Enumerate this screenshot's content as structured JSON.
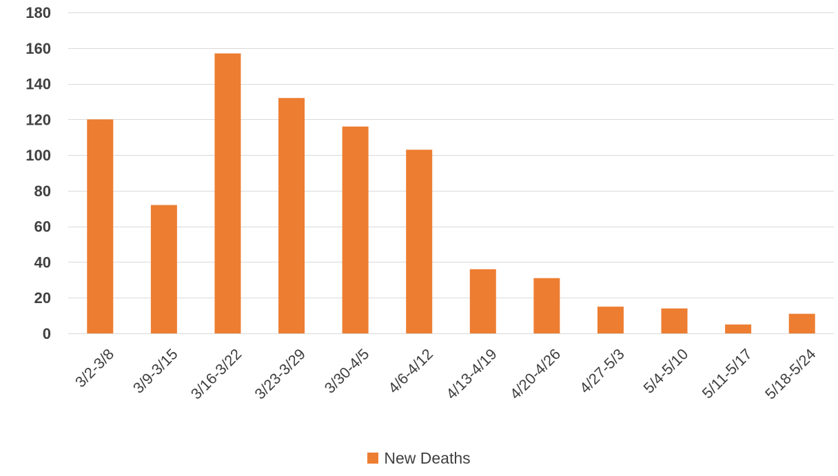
{
  "chart_data": {
    "type": "bar",
    "title": "",
    "xlabel": "",
    "ylabel": "",
    "categories": [
      "3/2-3/8",
      "3/9-3/15",
      "3/16-3/22",
      "3/23-3/29",
      "3/30-4/5",
      "4/6-4/12",
      "4/13-4/19",
      "4/20-4/26",
      "4/27-5/3",
      "5/4-5/10",
      "5/11-5/17",
      "5/18-5/24"
    ],
    "series": [
      {
        "name": "New Deaths",
        "color": "#ED7D31",
        "values": [
          120,
          72,
          157,
          132,
          116,
          103,
          36,
          31,
          15,
          14,
          5,
          11
        ]
      }
    ],
    "ylim": [
      0,
      180
    ],
    "yticks": [
      0,
      20,
      40,
      60,
      80,
      100,
      120,
      140,
      160,
      180
    ],
    "grid": true,
    "legend_position": "bottom"
  }
}
